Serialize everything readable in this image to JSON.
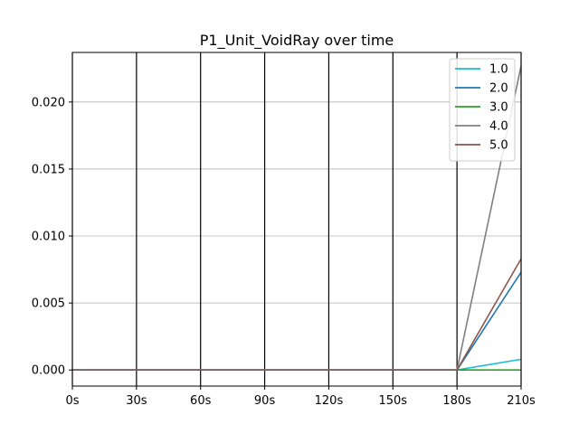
{
  "chart_data": {
    "type": "line",
    "title": "P1_Unit_VoidRay over time",
    "xlabel": "",
    "ylabel": "",
    "x": [
      0,
      30,
      60,
      90,
      120,
      150,
      180,
      210
    ],
    "x_tick_labels": [
      "0s",
      "30s",
      "60s",
      "90s",
      "120s",
      "150s",
      "180s",
      "210s"
    ],
    "xlim": [
      0,
      210
    ],
    "y_ticks": [
      0.0,
      0.005,
      0.01,
      0.015,
      0.02
    ],
    "y_tick_labels": [
      "0.000",
      "0.005",
      "0.010",
      "0.015",
      "0.020"
    ],
    "ylim": [
      -0.0012,
      0.0237
    ],
    "grid": {
      "y": true,
      "x_vertical_lines": true
    },
    "legend_position": "top-right",
    "series": [
      {
        "name": "1.0",
        "color": "#17becf",
        "values": [
          0,
          0,
          0,
          0,
          0,
          0,
          0,
          0.0008
        ]
      },
      {
        "name": "2.0",
        "color": "#1f77b4",
        "values": [
          0,
          0,
          0,
          0,
          0,
          0,
          0,
          0.0073
        ]
      },
      {
        "name": "3.0",
        "color": "#2ca02c",
        "values": [
          0,
          0,
          0,
          0,
          0,
          0,
          0,
          0.0
        ]
      },
      {
        "name": "4.0",
        "color": "#7f7f7f",
        "values": [
          0,
          0,
          0,
          0,
          0,
          0,
          0,
          0.0227
        ]
      },
      {
        "name": "5.0",
        "color": "#8c564b",
        "values": [
          0,
          0,
          0,
          0,
          0,
          0,
          0,
          0.0083
        ]
      }
    ]
  }
}
